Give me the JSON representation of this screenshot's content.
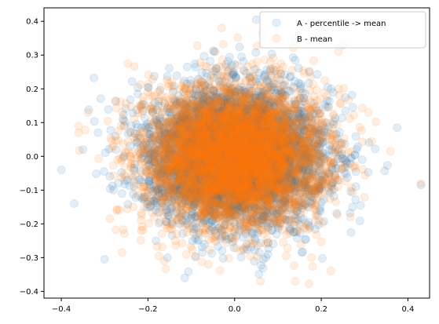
{
  "chart_data": {
    "type": "scatter",
    "title": "",
    "xlabel": "",
    "ylabel": "",
    "xlim": [
      -0.44,
      0.45
    ],
    "ylim": [
      -0.42,
      0.44
    ],
    "x_ticks": [
      -0.4,
      -0.2,
      0.0,
      0.2,
      0.4
    ],
    "x_tick_labels": [
      "−0.4",
      "−0.2",
      "0.0",
      "0.2",
      "0.4"
    ],
    "y_ticks": [
      -0.4,
      -0.3,
      -0.2,
      -0.1,
      0.0,
      0.1,
      0.2,
      0.3,
      0.4
    ],
    "y_tick_labels": [
      "−0.4",
      "−0.3",
      "−0.2",
      "−0.1",
      "0.0",
      "0.1",
      "0.2",
      "0.3",
      "0.4"
    ],
    "grid": false,
    "legend_position": "top-right",
    "marker_alpha": 0.12,
    "series": [
      {
        "name": "A - percentile -> mean",
        "color": "#1f77b4",
        "distribution": {
          "center_x": 0.0,
          "center_y": 0.0,
          "sd_x": 0.1,
          "sd_y": 0.1
        },
        "count": 5000,
        "outlier_points": [
          [
            -0.4,
            -0.04
          ],
          [
            -0.37,
            -0.14
          ],
          [
            -0.35,
            0.02
          ],
          [
            0.43,
            -0.085
          ],
          [
            -0.3,
            -0.305
          ],
          [
            0.05,
            0.405
          ],
          [
            -0.155,
            -0.3
          ],
          [
            -0.115,
            -0.36
          ],
          [
            0.375,
            0.085
          ],
          [
            0.25,
            0.33
          ]
        ]
      },
      {
        "name": "B - mean",
        "color": "#ff7f0e",
        "distribution": {
          "center_x": 0.0,
          "center_y": 0.0,
          "sd_x": 0.1,
          "sd_y": 0.1
        },
        "count": 5000,
        "outlier_points": [
          [
            -0.36,
            0.07
          ],
          [
            -0.36,
            0.09
          ],
          [
            0.43,
            -0.08
          ],
          [
            -0.26,
            -0.285
          ],
          [
            0.14,
            -0.37
          ],
          [
            0.06,
            -0.37
          ],
          [
            -0.03,
            0.38
          ],
          [
            -0.175,
            -0.295
          ],
          [
            0.24,
            0.31
          ],
          [
            0.36,
            0.015
          ]
        ]
      }
    ]
  }
}
